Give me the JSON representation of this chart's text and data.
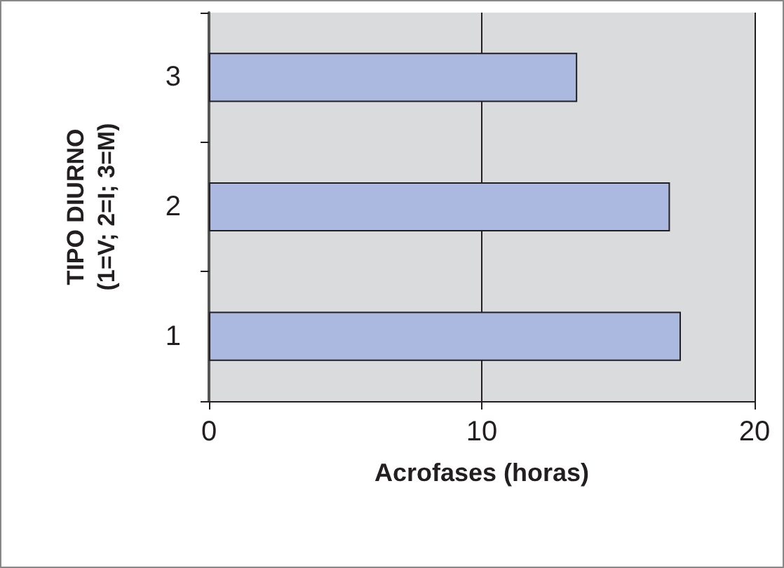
{
  "chart_data": {
    "type": "bar",
    "orientation": "horizontal",
    "xlabel": "Acrofases (horas)",
    "ylabel": "TIPO DIURNO\n(1=V; 2=I; 3=M)",
    "categories": [
      "3",
      "2",
      "1"
    ],
    "values": [
      13.5,
      16.9,
      17.3
    ],
    "color": "#abb9e0",
    "xlim": [
      0,
      20
    ],
    "xticks": [
      0,
      10,
      20
    ],
    "grid": "x"
  }
}
